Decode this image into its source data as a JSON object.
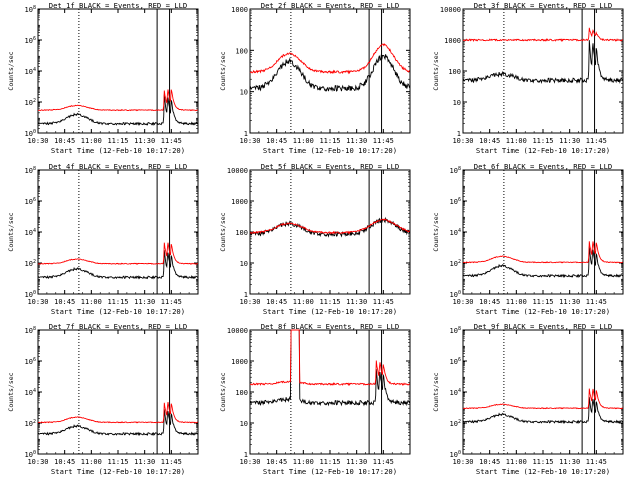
{
  "figure": {
    "xtick_labels": [
      "10:30",
      "10:45",
      "11:00",
      "11:15",
      "11:30",
      "11:45"
    ],
    "xlabel": "Start Time (12-Feb-10 10:17:20)",
    "ylabel": "Counts/sec",
    "colors": {
      "red_series": "#ff0000",
      "black_series": "#000000",
      "axes": "#000000",
      "background": "#ffffff"
    }
  },
  "chart_data": [
    {
      "type": "line",
      "title": "Det 1f BLACK = Events, RED = LLD",
      "ylim_exp": [
        0,
        8
      ],
      "yticks": [
        "10^0",
        "10^2",
        "10^4",
        "10^6",
        "10^8"
      ],
      "xlim_min": [
        13,
        103
      ],
      "tick_min": [
        13,
        28,
        43,
        58,
        73,
        88
      ],
      "dotted_min": [
        36,
        103
      ],
      "solid_min": [
        80,
        87
      ],
      "red_base": 30,
      "black_base": 4,
      "red_bump": 2.0,
      "black_bump": 4.0,
      "bump_center": 35,
      "bump_width": 8,
      "flare_red": [
        [
          84,
          20
        ],
        [
          86,
          15
        ],
        [
          88,
          12
        ]
      ],
      "flare_black": [
        [
          84,
          80
        ],
        [
          86,
          30
        ],
        [
          88,
          15
        ]
      ]
    },
    {
      "type": "line",
      "title": "Det 2f BLACK = Events, RED = LLD",
      "ylim_exp": [
        0,
        3
      ],
      "yticks": [
        "1",
        "10",
        "100",
        "1000"
      ],
      "xlim_min": [
        13,
        103
      ],
      "tick_min": [
        13,
        28,
        43,
        58,
        73,
        88
      ],
      "dotted_min": [
        36,
        103
      ],
      "solid_min": [
        80,
        87
      ],
      "red_base": 30,
      "black_base": 12,
      "red_bump": 2.8,
      "black_bump": 4.5,
      "bump_center": 35,
      "bump_width": 9,
      "second_bump": {
        "center": 88,
        "width": 8,
        "red": 4.5,
        "black": 6.0
      }
    },
    {
      "type": "line",
      "title": "Det 3f BLACK = Events, RED = LLD",
      "ylim_exp": [
        0,
        4
      ],
      "yticks": [
        "1",
        "10",
        "100",
        "1000",
        "10000"
      ],
      "xlim_min": [
        13,
        103
      ],
      "tick_min": [
        13,
        28,
        43,
        58,
        73,
        88
      ],
      "dotted_min": [
        36,
        103
      ],
      "solid_min": [
        80,
        87
      ],
      "red_base": 1000,
      "black_base": 50,
      "red_bump": 1.0,
      "black_bump": 1.6,
      "bump_center": 35,
      "bump_width": 9,
      "flare_red": [
        [
          84,
          2.5
        ],
        [
          86,
          1.8
        ],
        [
          88,
          1.4
        ]
      ],
      "flare_black": [
        [
          84,
          20
        ],
        [
          86,
          12
        ],
        [
          88,
          6
        ]
      ]
    },
    {
      "type": "line",
      "title": "Det 4f BLACK = Events, RED = LLD",
      "ylim_exp": [
        0,
        8
      ],
      "yticks": [
        "10^0",
        "10^2",
        "10^4",
        "10^6",
        "10^8"
      ],
      "xlim_min": [
        13,
        103
      ],
      "tick_min": [
        13,
        28,
        43,
        58,
        73,
        88
      ],
      "dotted_min": [
        36,
        103
      ],
      "solid_min": [
        80,
        87
      ],
      "red_base": 90,
      "black_base": 12,
      "red_bump": 2.0,
      "black_bump": 3.5,
      "bump_center": 35,
      "bump_width": 8,
      "flare_red": [
        [
          84,
          25
        ],
        [
          86,
          15
        ],
        [
          88,
          10
        ]
      ],
      "flare_black": [
        [
          84,
          60
        ],
        [
          86,
          25
        ],
        [
          88,
          12
        ]
      ]
    },
    {
      "type": "line",
      "title": "Det 5f BLACK = Events, RED = LLD",
      "ylim_exp": [
        0,
        4
      ],
      "yticks": [
        "1",
        "10",
        "100",
        "1000",
        "10000"
      ],
      "xlim_min": [
        13,
        103
      ],
      "tick_min": [
        13,
        28,
        43,
        58,
        73,
        88
      ],
      "dotted_min": [
        36,
        103
      ],
      "solid_min": [
        80,
        87
      ],
      "red_base": 95,
      "black_base": 85,
      "red_bump": 2.0,
      "black_bump": 2.2,
      "bump_center": 35,
      "bump_width": 10,
      "second_bump": {
        "center": 88,
        "width": 10,
        "red": 2.6,
        "black": 2.8
      }
    },
    {
      "type": "line",
      "title": "Det 6f BLACK = Events, RED = LLD",
      "ylim_exp": [
        0,
        8
      ],
      "yticks": [
        "10^0",
        "10^2",
        "10^4",
        "10^6",
        "10^8"
      ],
      "xlim_min": [
        13,
        103
      ],
      "tick_min": [
        13,
        28,
        43,
        58,
        73,
        88
      ],
      "dotted_min": [
        36,
        103
      ],
      "solid_min": [
        80,
        87
      ],
      "red_base": 110,
      "black_base": 15,
      "red_bump": 2.5,
      "black_bump": 4.5,
      "bump_center": 35,
      "bump_width": 8,
      "flare_red": [
        [
          84,
          25
        ],
        [
          86,
          15
        ],
        [
          88,
          10
        ]
      ],
      "flare_black": [
        [
          84,
          80
        ],
        [
          86,
          30
        ],
        [
          88,
          12
        ]
      ]
    },
    {
      "type": "line",
      "title": "Det 7f BLACK = Events, RED = LLD",
      "ylim_exp": [
        0,
        8
      ],
      "yticks": [
        "10^0",
        "10^2",
        "10^4",
        "10^6",
        "10^8"
      ],
      "xlim_min": [
        13,
        103
      ],
      "tick_min": [
        13,
        28,
        43,
        58,
        73,
        88
      ],
      "dotted_min": [
        36,
        103
      ],
      "solid_min": [
        80,
        87
      ],
      "red_base": 110,
      "black_base": 20,
      "red_bump": 2.2,
      "black_bump": 3.2,
      "bump_center": 35,
      "bump_width": 8,
      "flare_red": [
        [
          84,
          20
        ],
        [
          86,
          14
        ],
        [
          88,
          9
        ]
      ],
      "flare_black": [
        [
          84,
          40
        ],
        [
          86,
          20
        ],
        [
          88,
          10
        ]
      ]
    },
    {
      "type": "line",
      "title": "Det 8f BLACK = Events, RED = LLD",
      "ylim_exp": [
        0,
        4
      ],
      "yticks": [
        "1",
        "10",
        "100",
        "1000",
        "10000"
      ],
      "xlim_min": [
        13,
        103
      ],
      "tick_min": [
        13,
        28,
        43,
        58,
        73,
        88
      ],
      "dotted_min": [
        36,
        103
      ],
      "solid_min": [
        80,
        87
      ],
      "red_base": 180,
      "black_base": 45,
      "red_bump": 1.2,
      "black_bump": 1.3,
      "bump_center": 35,
      "bump_width": 8,
      "spike": {
        "start": 36,
        "end": 41,
        "value": 20000
      },
      "flare_red": [
        [
          84,
          6
        ],
        [
          86,
          4
        ],
        [
          88,
          3
        ]
      ],
      "flare_black": [
        [
          84,
          12
        ],
        [
          86,
          8
        ],
        [
          88,
          5
        ]
      ]
    },
    {
      "type": "line",
      "title": "Det 9f BLACK = Events, RED = LLD",
      "ylim_exp": [
        0,
        8
      ],
      "yticks": [
        "10^0",
        "10^2",
        "10^4",
        "10^6",
        "10^8"
      ],
      "xlim_min": [
        13,
        103
      ],
      "tick_min": [
        13,
        28,
        43,
        58,
        73,
        88
      ],
      "dotted_min": [
        36,
        103
      ],
      "solid_min": [
        80,
        87
      ],
      "red_base": 900,
      "black_base": 120,
      "red_bump": 1.8,
      "black_bump": 3.0,
      "bump_center": 35,
      "bump_width": 8,
      "flare_red": [
        [
          84,
          20
        ],
        [
          86,
          12
        ],
        [
          88,
          8
        ]
      ],
      "flare_black": [
        [
          84,
          40
        ],
        [
          86,
          20
        ],
        [
          88,
          10
        ]
      ]
    }
  ]
}
